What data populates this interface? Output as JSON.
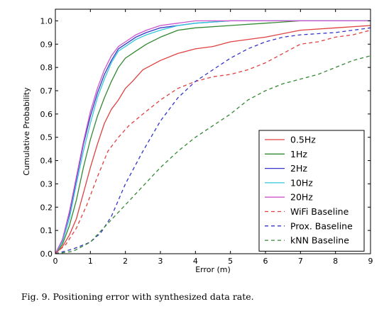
{
  "caption": "Fig. 9.  Positioning error with synthesized data rate.",
  "chart_data": {
    "type": "line",
    "xlabel": "Error (m)",
    "ylabel": "Cumulative Probability",
    "xlim": [
      0,
      9
    ],
    "ylim": [
      0,
      1.05
    ],
    "xticks": [
      "0",
      "1",
      "2",
      "3",
      "4",
      "5",
      "6",
      "7",
      "8",
      "9"
    ],
    "yticks": [
      "0.0",
      "0.1",
      "0.2",
      "0.3",
      "0.4",
      "0.5",
      "0.6",
      "0.7",
      "0.8",
      "0.9",
      "1.0"
    ],
    "grid": false,
    "legend_position": "lower-right",
    "series": [
      {
        "name": "0.5Hz",
        "color": "#e04040",
        "dashed": false,
        "points": [
          [
            0,
            0
          ],
          [
            0.2,
            0.03
          ],
          [
            0.4,
            0.08
          ],
          [
            0.6,
            0.15
          ],
          [
            0.8,
            0.26
          ],
          [
            1.0,
            0.37
          ],
          [
            1.2,
            0.47
          ],
          [
            1.4,
            0.56
          ],
          [
            1.6,
            0.62
          ],
          [
            1.8,
            0.66
          ],
          [
            2.0,
            0.71
          ],
          [
            2.2,
            0.74
          ],
          [
            2.5,
            0.79
          ],
          [
            3.0,
            0.83
          ],
          [
            3.5,
            0.86
          ],
          [
            4.0,
            0.88
          ],
          [
            4.5,
            0.89
          ],
          [
            5.0,
            0.91
          ],
          [
            6.0,
            0.93
          ],
          [
            7.0,
            0.96
          ],
          [
            8.0,
            0.97
          ],
          [
            9.0,
            0.98
          ]
        ]
      },
      {
        "name": "1Hz",
        "color": "#338833",
        "dashed": false,
        "points": [
          [
            0,
            0
          ],
          [
            0.2,
            0.04
          ],
          [
            0.4,
            0.12
          ],
          [
            0.6,
            0.23
          ],
          [
            0.8,
            0.37
          ],
          [
            1.0,
            0.49
          ],
          [
            1.2,
            0.59
          ],
          [
            1.4,
            0.67
          ],
          [
            1.6,
            0.74
          ],
          [
            1.8,
            0.8
          ],
          [
            2.0,
            0.84
          ],
          [
            2.3,
            0.87
          ],
          [
            2.6,
            0.9
          ],
          [
            3.0,
            0.93
          ],
          [
            3.5,
            0.96
          ],
          [
            4.0,
            0.97
          ],
          [
            5.0,
            0.98
          ],
          [
            6.0,
            0.99
          ],
          [
            7.0,
            1.0
          ],
          [
            9.0,
            1.0
          ]
        ]
      },
      {
        "name": "2Hz",
        "color": "#3535c8",
        "dashed": false,
        "points": [
          [
            0,
            0
          ],
          [
            0.2,
            0.06
          ],
          [
            0.4,
            0.17
          ],
          [
            0.6,
            0.32
          ],
          [
            0.8,
            0.47
          ],
          [
            1.0,
            0.59
          ],
          [
            1.2,
            0.69
          ],
          [
            1.4,
            0.77
          ],
          [
            1.6,
            0.83
          ],
          [
            1.8,
            0.88
          ],
          [
            2.0,
            0.9
          ],
          [
            2.3,
            0.93
          ],
          [
            2.6,
            0.95
          ],
          [
            3.0,
            0.97
          ],
          [
            3.5,
            0.98
          ],
          [
            4.0,
            0.99
          ],
          [
            5.0,
            1.0
          ],
          [
            9.0,
            1.0
          ]
        ]
      },
      {
        "name": "10Hz",
        "color": "#33c8d8",
        "dashed": false,
        "points": [
          [
            0,
            0
          ],
          [
            0.2,
            0.05
          ],
          [
            0.4,
            0.15
          ],
          [
            0.6,
            0.3
          ],
          [
            0.8,
            0.44
          ],
          [
            1.0,
            0.56
          ],
          [
            1.2,
            0.67
          ],
          [
            1.4,
            0.75
          ],
          [
            1.6,
            0.82
          ],
          [
            1.8,
            0.87
          ],
          [
            2.0,
            0.89
          ],
          [
            2.3,
            0.92
          ],
          [
            2.6,
            0.94
          ],
          [
            3.0,
            0.96
          ],
          [
            3.5,
            0.98
          ],
          [
            4.0,
            0.99
          ],
          [
            5.0,
            1.0
          ],
          [
            9.0,
            1.0
          ]
        ]
      },
      {
        "name": "20Hz",
        "color": "#cc55cc",
        "dashed": false,
        "points": [
          [
            0,
            0
          ],
          [
            0.2,
            0.06
          ],
          [
            0.4,
            0.18
          ],
          [
            0.6,
            0.33
          ],
          [
            0.8,
            0.48
          ],
          [
            1.0,
            0.61
          ],
          [
            1.2,
            0.71
          ],
          [
            1.4,
            0.79
          ],
          [
            1.6,
            0.85
          ],
          [
            1.8,
            0.89
          ],
          [
            2.0,
            0.91
          ],
          [
            2.3,
            0.94
          ],
          [
            2.6,
            0.96
          ],
          [
            3.0,
            0.98
          ],
          [
            3.5,
            0.99
          ],
          [
            4.0,
            1.0
          ],
          [
            9.0,
            1.0
          ]
        ]
      },
      {
        "name": "WiFi Baseline",
        "color": "#e04040",
        "dashed": true,
        "points": [
          [
            0,
            0
          ],
          [
            0.3,
            0.04
          ],
          [
            0.6,
            0.11
          ],
          [
            0.9,
            0.21
          ],
          [
            1.2,
            0.33
          ],
          [
            1.5,
            0.44
          ],
          [
            1.8,
            0.5
          ],
          [
            2.1,
            0.55
          ],
          [
            2.5,
            0.6
          ],
          [
            3.0,
            0.66
          ],
          [
            3.5,
            0.71
          ],
          [
            4.0,
            0.74
          ],
          [
            4.5,
            0.76
          ],
          [
            5.0,
            0.77
          ],
          [
            5.5,
            0.79
          ],
          [
            6.0,
            0.82
          ],
          [
            6.5,
            0.86
          ],
          [
            7.0,
            0.9
          ],
          [
            7.5,
            0.91
          ],
          [
            8.0,
            0.93
          ],
          [
            8.5,
            0.94
          ],
          [
            9.0,
            0.96
          ]
        ]
      },
      {
        "name": "Prox. Baseline",
        "color": "#3535c8",
        "dashed": true,
        "points": [
          [
            0,
            0
          ],
          [
            0.5,
            0.02
          ],
          [
            1.0,
            0.05
          ],
          [
            1.3,
            0.09
          ],
          [
            1.6,
            0.16
          ],
          [
            2.0,
            0.3
          ],
          [
            2.5,
            0.44
          ],
          [
            3.0,
            0.57
          ],
          [
            3.5,
            0.67
          ],
          [
            4.0,
            0.74
          ],
          [
            4.5,
            0.79
          ],
          [
            5.0,
            0.84
          ],
          [
            5.5,
            0.88
          ],
          [
            6.0,
            0.91
          ],
          [
            6.5,
            0.93
          ],
          [
            7.0,
            0.94
          ],
          [
            8.0,
            0.95
          ],
          [
            9.0,
            0.97
          ]
        ]
      },
      {
        "name": "kNN Baseline",
        "color": "#338833",
        "dashed": true,
        "points": [
          [
            0,
            0
          ],
          [
            0.5,
            0.01
          ],
          [
            1.0,
            0.05
          ],
          [
            1.5,
            0.13
          ],
          [
            2.0,
            0.21
          ],
          [
            2.5,
            0.29
          ],
          [
            3.0,
            0.37
          ],
          [
            3.5,
            0.44
          ],
          [
            4.0,
            0.5
          ],
          [
            4.5,
            0.55
          ],
          [
            5.0,
            0.6
          ],
          [
            5.5,
            0.66
          ],
          [
            6.0,
            0.7
          ],
          [
            6.5,
            0.73
          ],
          [
            7.0,
            0.75
          ],
          [
            7.5,
            0.77
          ],
          [
            8.0,
            0.8
          ],
          [
            8.5,
            0.83
          ],
          [
            9.0,
            0.85
          ]
        ]
      }
    ]
  }
}
